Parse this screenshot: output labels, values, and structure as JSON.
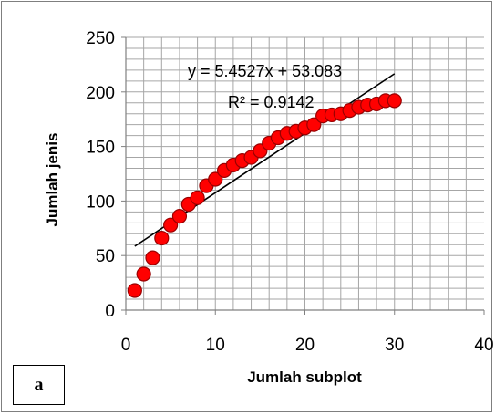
{
  "panel_label": "a",
  "chart_data": {
    "type": "scatter",
    "xlabel": "Jumlah subplot",
    "ylabel": "Jumlah jenis",
    "xlim": [
      0,
      40
    ],
    "ylim": [
      0,
      250
    ],
    "x_ticks": [
      "0",
      "10",
      "20",
      "30",
      "40"
    ],
    "y_ticks": [
      "0",
      "50",
      "100",
      "150",
      "200",
      "250"
    ],
    "grid": true,
    "legend": "none",
    "series": [
      {
        "marker_color": "#ff0000",
        "marker_edge": "#990000",
        "x": [
          1,
          2,
          3,
          4,
          5,
          6,
          7,
          8,
          9,
          10,
          11,
          12,
          13,
          14,
          15,
          16,
          17,
          18,
          19,
          20,
          21,
          22,
          23,
          24,
          25,
          26,
          27,
          28,
          29,
          30
        ],
        "y": [
          18,
          33,
          48,
          66,
          78,
          86,
          97,
          103,
          114,
          120,
          128,
          133,
          137,
          140,
          146,
          153,
          158,
          162,
          164,
          167,
          170,
          178,
          179,
          180,
          183,
          186,
          188,
          189,
          192,
          192
        ]
      }
    ],
    "trendline": {
      "slope": 5.4527,
      "intercept": 53.083,
      "x_range": [
        1,
        30
      ],
      "color": "#000000",
      "equation": "y = 5.4527x + 53.083",
      "r2": "R² = 0.9142"
    }
  }
}
